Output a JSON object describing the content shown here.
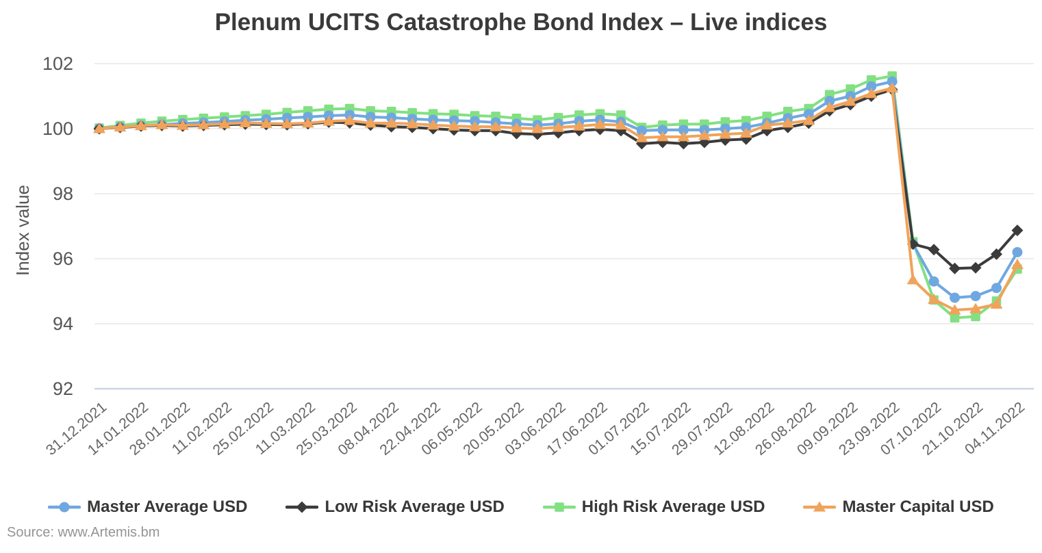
{
  "chart_data": {
    "type": "line",
    "title": "Plenum UCITS Catastrophe Bond Index – Live indices",
    "ylabel": "Index value",
    "xlabel": "",
    "ylim": [
      92,
      102
    ],
    "y_ticks": [
      102,
      100,
      98,
      96,
      94,
      92
    ],
    "grid": "horizontal",
    "legend_position": "bottom",
    "n_points": 45,
    "points_per_tick": 2,
    "x_tick_labels": [
      "31.12.2021",
      "14.01.2022",
      "28.01.2022",
      "11.02.2022",
      "25.02.2022",
      "11.03.2022",
      "25.03.2022",
      "08.04.2022",
      "22.04.2022",
      "06.05.2022",
      "20.05.2022",
      "03.06.2022",
      "17.06.2022",
      "01.07.2022",
      "15.07.2022",
      "29.07.2022",
      "12.08.2022",
      "26.08.2022",
      "09.09.2022",
      "23.09.2022",
      "07.10.2022",
      "21.10.2022",
      "04.11.2022"
    ],
    "series": [
      {
        "name": "Master Average USD",
        "color": "#6FA8E0",
        "marker": "circle",
        "values": [
          100,
          100.05,
          100.09,
          100.13,
          100.16,
          100.19,
          100.22,
          100.26,
          100.29,
          100.33,
          100.36,
          100.4,
          100.42,
          100.36,
          100.34,
          100.3,
          100.27,
          100.25,
          100.23,
          100.19,
          100.15,
          100.11,
          100.15,
          100.23,
          100.27,
          100.21,
          99.94,
          99.96,
          99.96,
          99.96,
          100,
          100.04,
          100.17,
          100.32,
          100.45,
          100.85,
          101,
          101.3,
          101.45,
          96.45,
          95.3,
          94.8,
          94.85,
          95.1,
          96.2
        ]
      },
      {
        "name": "Low Risk Average USD",
        "color": "#3B3B3B",
        "marker": "diamond",
        "values": [
          100,
          100.04,
          100.08,
          100.1,
          100.08,
          100.1,
          100.12,
          100.14,
          100.13,
          100.12,
          100.15,
          100.2,
          100.18,
          100.11,
          100.06,
          100.04,
          100,
          99.96,
          99.94,
          99.94,
          99.85,
          99.83,
          99.87,
          99.94,
          99.98,
          99.94,
          99.54,
          99.58,
          99.54,
          99.58,
          99.65,
          99.68,
          99.94,
          100.04,
          100.17,
          100.55,
          100.74,
          101,
          101.2,
          96.45,
          96.28,
          95.7,
          95.72,
          96.14,
          96.87
        ]
      },
      {
        "name": "High Risk Average USD",
        "color": "#82E082",
        "marker": "square",
        "values": [
          100.02,
          100.1,
          100.17,
          100.23,
          100.28,
          100.32,
          100.36,
          100.4,
          100.44,
          100.5,
          100.55,
          100.6,
          100.62,
          100.55,
          100.53,
          100.49,
          100.46,
          100.44,
          100.4,
          100.38,
          100.32,
          100.27,
          100.34,
          100.42,
          100.46,
          100.42,
          100.04,
          100.11,
          100.14,
          100.14,
          100.21,
          100.25,
          100.38,
          100.53,
          100.62,
          101.05,
          101.22,
          101.5,
          101.62,
          96.52,
          94.73,
          94.18,
          94.22,
          94.7,
          95.68
        ]
      },
      {
        "name": "Master Capital USD",
        "color": "#F0A35B",
        "marker": "triangle",
        "values": [
          100,
          100.05,
          100.09,
          100.12,
          100.1,
          100.12,
          100.15,
          100.18,
          100.16,
          100.15,
          100.17,
          100.23,
          100.25,
          100.17,
          100.17,
          100.15,
          100.11,
          100.08,
          100.06,
          100.06,
          100.02,
          100,
          100.04,
          100.08,
          100.13,
          100.11,
          99.72,
          99.75,
          99.75,
          99.79,
          99.83,
          99.86,
          100.11,
          100.17,
          100.25,
          100.65,
          100.84,
          101.08,
          101.25,
          95.35,
          94.75,
          94.42,
          94.46,
          94.6,
          95.82
        ]
      }
    ],
    "draw_order": [
      2,
      0,
      1,
      3
    ]
  },
  "footer": {
    "source": "Source: www.Artemis.bm"
  },
  "colors": {
    "grid": "#E7E7E7",
    "baseline": "#CBD5E6",
    "y_tick_text": "#555555",
    "x_tick_text": "#666666",
    "title_text": "#3A3A3A",
    "legend_text": "#373737",
    "source_text": "#949494"
  }
}
